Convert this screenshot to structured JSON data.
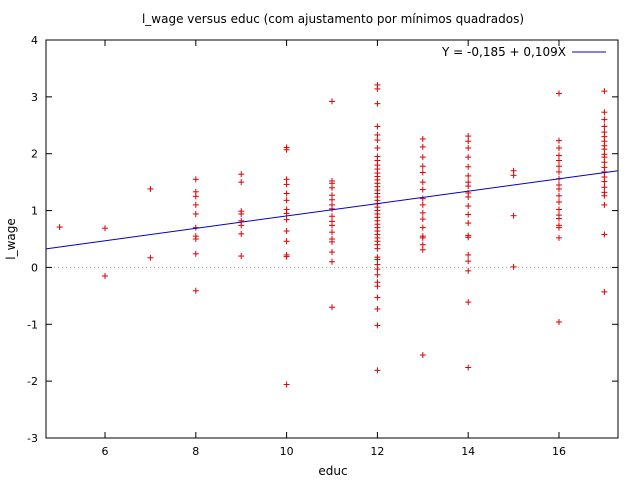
{
  "chart_data": {
    "type": "scatter",
    "title": "l_wage versus educ (com ajustamento por mínimos quadrados)",
    "xlabel": "educ",
    "ylabel": "l_wage",
    "xlim": [
      4.7,
      17.3
    ],
    "ylim": [
      -3,
      4
    ],
    "xticks": [
      6,
      8,
      10,
      12,
      14,
      16
    ],
    "xtick_labels": [
      "6",
      "8",
      "10",
      "12",
      "14",
      "16"
    ],
    "yticks": [
      -3,
      -2,
      -1,
      0,
      1,
      2,
      3,
      4
    ],
    "ytick_labels": [
      "-3",
      "-2",
      "-1",
      "0",
      "1",
      "2",
      "3",
      "4"
    ],
    "zero_line": true,
    "legend_position": "top-right",
    "colors": {
      "points": "#e00000",
      "fit": "#0000cc"
    },
    "fit": {
      "label": "Y = -0,185 + 0,109X",
      "intercept": -0.185,
      "slope": 0.109
    },
    "series": [
      {
        "marker": "plus",
        "points": [
          [
            5,
            0.71
          ],
          [
            6,
            0.69
          ],
          [
            6,
            -0.15
          ],
          [
            7,
            1.38
          ],
          [
            7,
            0.17
          ],
          [
            8,
            1.55
          ],
          [
            8,
            1.33
          ],
          [
            8,
            1.25
          ],
          [
            8,
            1.1
          ],
          [
            8,
            0.94
          ],
          [
            8,
            0.7
          ],
          [
            8,
            0.55
          ],
          [
            8,
            0.5
          ],
          [
            8,
            0.24
          ],
          [
            8,
            -0.41
          ],
          [
            9,
            1.64
          ],
          [
            9,
            1.5
          ],
          [
            9,
            0.99
          ],
          [
            9,
            0.94
          ],
          [
            9,
            0.82
          ],
          [
            9,
            0.74
          ],
          [
            9,
            0.59
          ],
          [
            9,
            0.2
          ],
          [
            10,
            2.11
          ],
          [
            10,
            2.07
          ],
          [
            10,
            1.55
          ],
          [
            10,
            1.46
          ],
          [
            10,
            1.3
          ],
          [
            10,
            1.18
          ],
          [
            10,
            1.02
          ],
          [
            10,
            0.95
          ],
          [
            10,
            0.84
          ],
          [
            10,
            0.64
          ],
          [
            10,
            0.46
          ],
          [
            10,
            0.22
          ],
          [
            10,
            0.19
          ],
          [
            10,
            -2.06
          ],
          [
            11,
            2.92
          ],
          [
            11,
            1.52
          ],
          [
            11,
            1.48
          ],
          [
            11,
            1.4
          ],
          [
            11,
            1.27
          ],
          [
            11,
            1.19
          ],
          [
            11,
            1.1
          ],
          [
            11,
            1.03
          ],
          [
            11,
            0.9
          ],
          [
            11,
            0.81
          ],
          [
            11,
            0.74
          ],
          [
            11,
            0.62
          ],
          [
            11,
            0.5
          ],
          [
            11,
            0.45
          ],
          [
            11,
            0.27
          ],
          [
            11,
            0.1
          ],
          [
            11,
            -0.7
          ],
          [
            12,
            3.21
          ],
          [
            12,
            3.14
          ],
          [
            12,
            2.88
          ],
          [
            12,
            2.48
          ],
          [
            12,
            2.33
          ],
          [
            12,
            2.24
          ],
          [
            12,
            2.1
          ],
          [
            12,
            1.95
          ],
          [
            12,
            1.88
          ],
          [
            12,
            1.8
          ],
          [
            12,
            1.73
          ],
          [
            12,
            1.66
          ],
          [
            12,
            1.6
          ],
          [
            12,
            1.54
          ],
          [
            12,
            1.48
          ],
          [
            12,
            1.42
          ],
          [
            12,
            1.36
          ],
          [
            12,
            1.3
          ],
          [
            12,
            1.24
          ],
          [
            12,
            1.18
          ],
          [
            12,
            1.12
          ],
          [
            12,
            1.06
          ],
          [
            12,
            1.0
          ],
          [
            12,
            0.94
          ],
          [
            12,
            0.88
          ],
          [
            12,
            0.82
          ],
          [
            12,
            0.76
          ],
          [
            12,
            0.7
          ],
          [
            12,
            0.64
          ],
          [
            12,
            0.58
          ],
          [
            12,
            0.52
          ],
          [
            12,
            0.46
          ],
          [
            12,
            0.4
          ],
          [
            12,
            0.33
          ],
          [
            12,
            0.18
          ],
          [
            12,
            0.14
          ],
          [
            12,
            0.05
          ],
          [
            12,
            -0.03
          ],
          [
            12,
            -0.13
          ],
          [
            12,
            -0.26
          ],
          [
            12,
            -0.33
          ],
          [
            12,
            -0.53
          ],
          [
            12,
            -0.73
          ],
          [
            12,
            -1.02
          ],
          [
            12,
            -1.81
          ],
          [
            13,
            2.26
          ],
          [
            13,
            2.12
          ],
          [
            13,
            1.94
          ],
          [
            13,
            1.78
          ],
          [
            13,
            1.67
          ],
          [
            13,
            1.5
          ],
          [
            13,
            1.37
          ],
          [
            13,
            1.21
          ],
          [
            13,
            1.1
          ],
          [
            13,
            0.96
          ],
          [
            13,
            0.85
          ],
          [
            13,
            0.7
          ],
          [
            13,
            0.55
          ],
          [
            13,
            0.52
          ],
          [
            13,
            0.4
          ],
          [
            13,
            0.31
          ],
          [
            13,
            -1.54
          ],
          [
            14,
            2.31
          ],
          [
            14,
            2.22
          ],
          [
            14,
            2.1
          ],
          [
            14,
            1.94
          ],
          [
            14,
            1.77
          ],
          [
            14,
            1.61
          ],
          [
            14,
            1.5
          ],
          [
            14,
            1.43
          ],
          [
            14,
            1.31
          ],
          [
            14,
            1.24
          ],
          [
            14,
            1.08
          ],
          [
            14,
            0.93
          ],
          [
            14,
            0.78
          ],
          [
            14,
            0.56
          ],
          [
            14,
            0.53
          ],
          [
            14,
            0.22
          ],
          [
            14,
            0.11
          ],
          [
            14,
            -0.06
          ],
          [
            14,
            -0.61
          ],
          [
            14,
            -1.76
          ],
          [
            15,
            1.7
          ],
          [
            15,
            1.62
          ],
          [
            15,
            0.91
          ],
          [
            15,
            0.01
          ],
          [
            16,
            3.06
          ],
          [
            16,
            2.23
          ],
          [
            16,
            2.1
          ],
          [
            16,
            1.97
          ],
          [
            16,
            1.88
          ],
          [
            16,
            1.78
          ],
          [
            16,
            1.68
          ],
          [
            16,
            1.56
          ],
          [
            16,
            1.45
          ],
          [
            16,
            1.38
          ],
          [
            16,
            1.26
          ],
          [
            16,
            1.15
          ],
          [
            16,
            1.02
          ],
          [
            16,
            0.92
          ],
          [
            16,
            0.86
          ],
          [
            16,
            0.74
          ],
          [
            16,
            0.7
          ],
          [
            16,
            0.52
          ],
          [
            16,
            -0.96
          ],
          [
            17,
            3.1
          ],
          [
            17,
            2.73
          ],
          [
            17,
            2.6
          ],
          [
            17,
            2.48
          ],
          [
            17,
            2.38
          ],
          [
            17,
            2.3
          ],
          [
            17,
            2.22
          ],
          [
            17,
            2.14
          ],
          [
            17,
            2.08
          ],
          [
            17,
            1.99
          ],
          [
            17,
            1.94
          ],
          [
            17,
            1.85
          ],
          [
            17,
            1.76
          ],
          [
            17,
            1.68
          ],
          [
            17,
            1.59
          ],
          [
            17,
            1.51
          ],
          [
            17,
            1.41
          ],
          [
            17,
            1.32
          ],
          [
            17,
            1.26
          ],
          [
            17,
            1.1
          ],
          [
            17,
            0.58
          ],
          [
            17,
            -0.43
          ]
        ]
      }
    ]
  }
}
